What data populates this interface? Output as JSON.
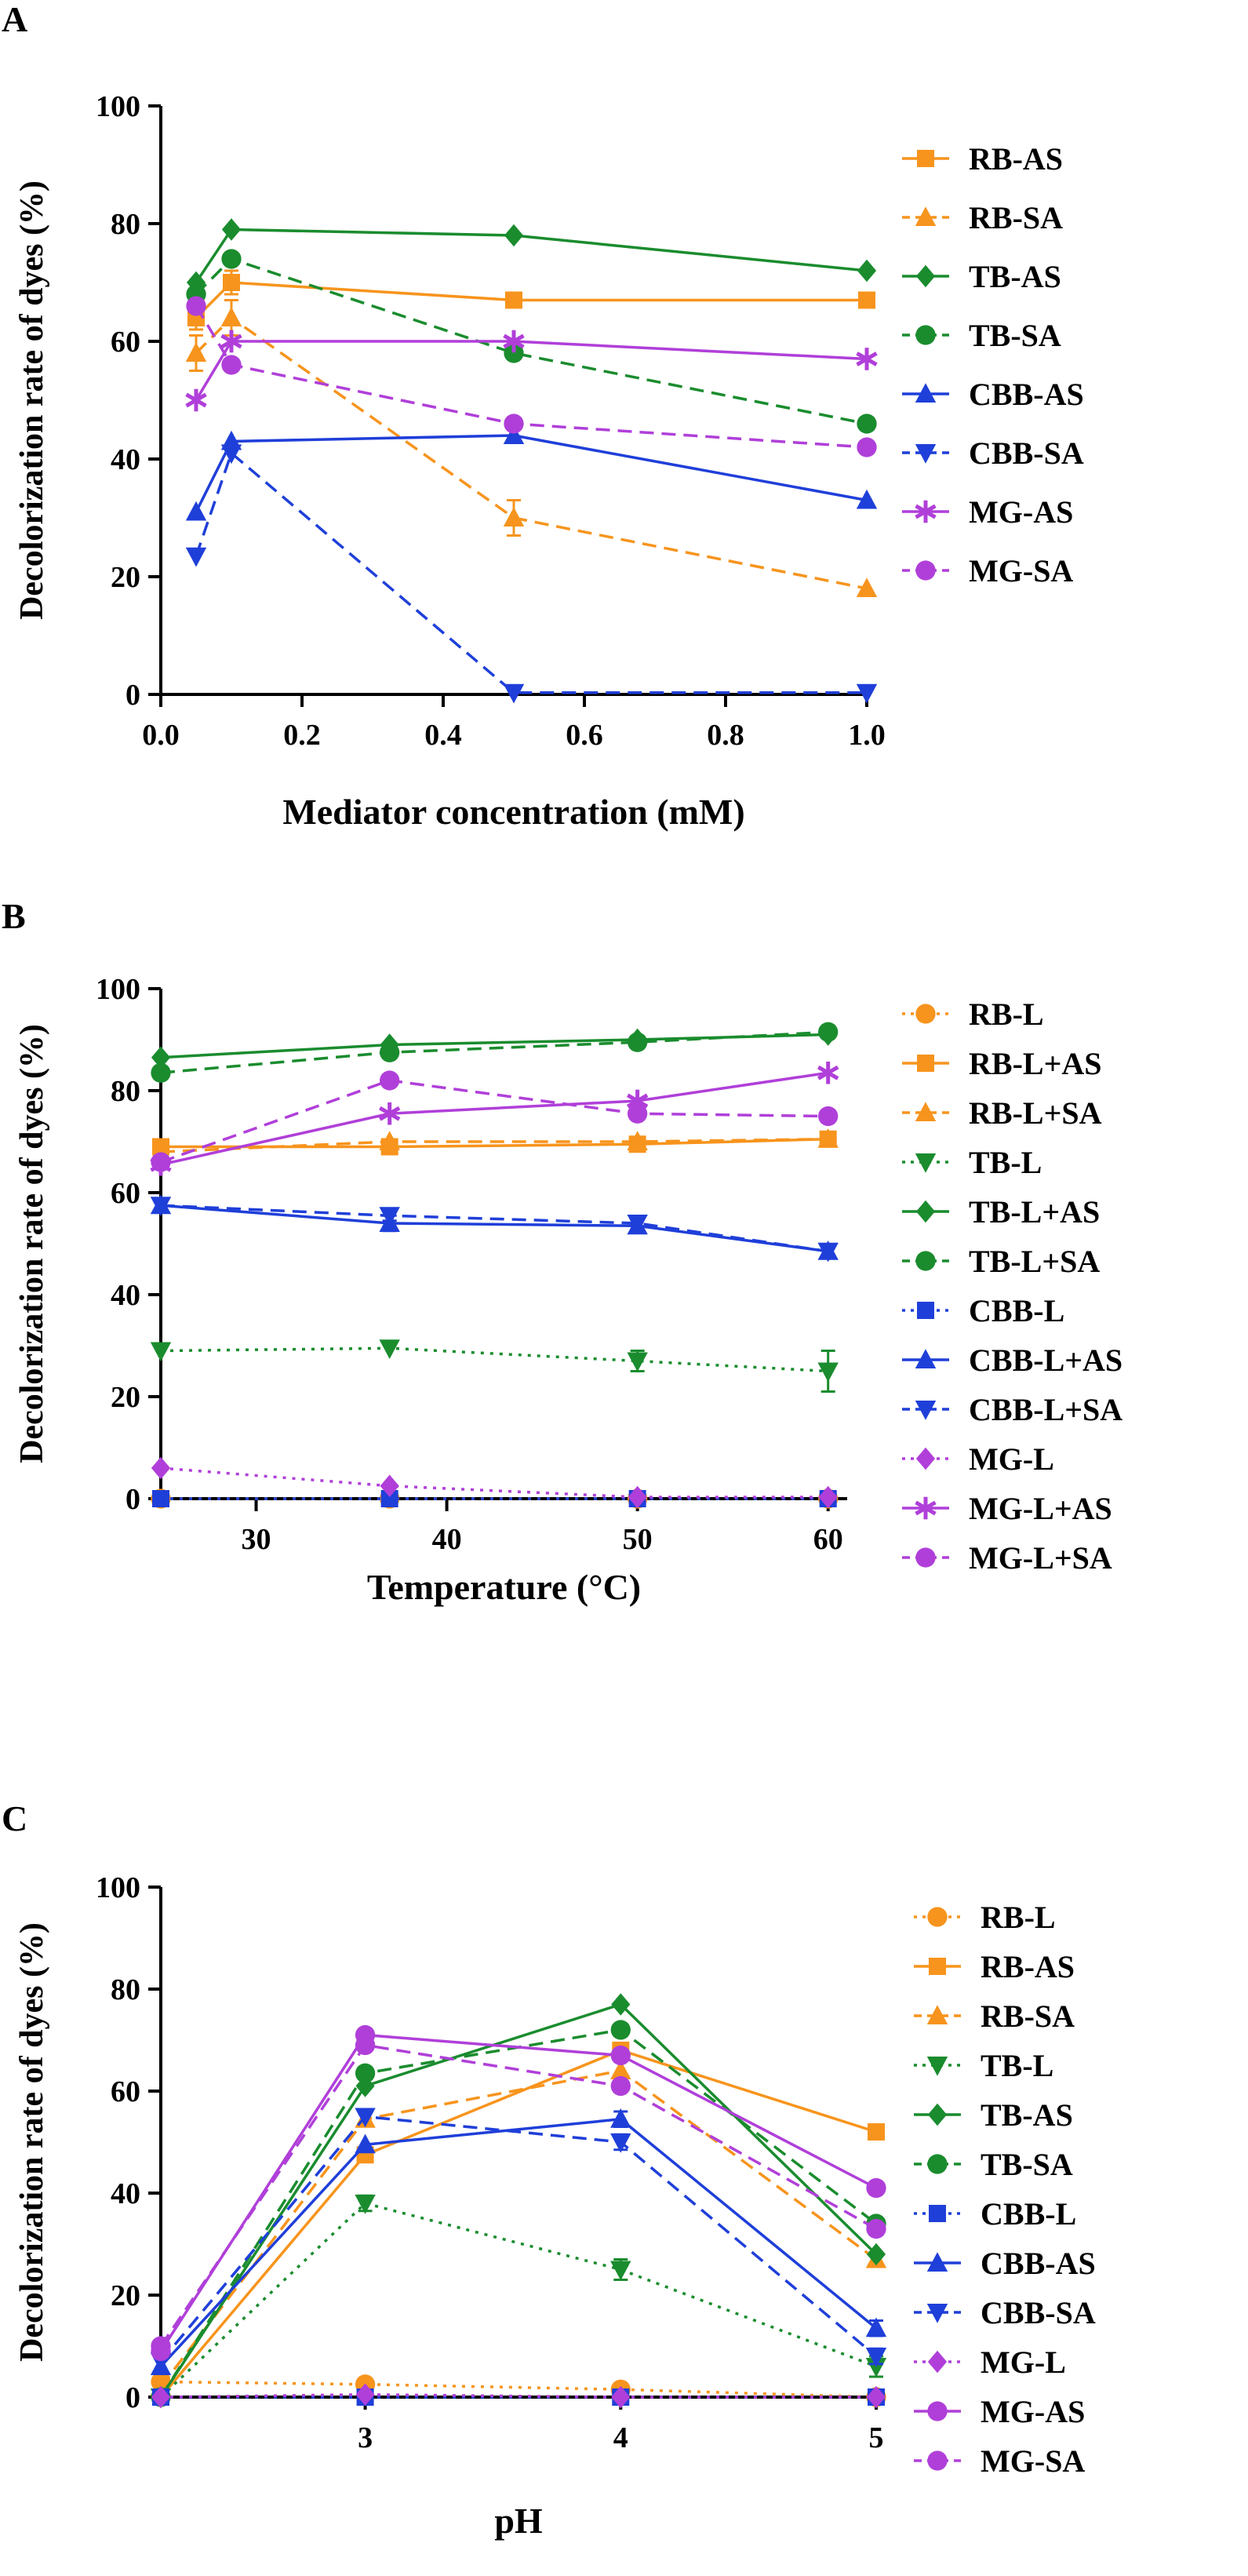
{
  "chart_data": [
    {
      "panel_label": "A",
      "type": "line",
      "xlabel": "Mediator concentration (mM)",
      "ylabel": "Decolorization rate of dyes (%)",
      "xlim": [
        0,
        1.0
      ],
      "ylim": [
        0,
        100
      ],
      "xticks": [
        0.0,
        0.2,
        0.4,
        0.6,
        0.8,
        1.0
      ],
      "xtick_labels": [
        "0.0",
        "0.2",
        "0.4",
        "0.6",
        "0.8",
        "1.0"
      ],
      "yticks": [
        0,
        20,
        40,
        60,
        80,
        100
      ],
      "ytick_labels": [
        "0",
        "20",
        "40",
        "60",
        "80",
        "100"
      ],
      "legend_position": "right",
      "x": [
        0.05,
        0.1,
        0.5,
        1.0
      ],
      "series": [
        {
          "name": "RB-AS",
          "color": "#f7941d",
          "dash": "solid",
          "marker": "square",
          "values": [
            64,
            70,
            67,
            67
          ],
          "errors": [
            2,
            2,
            0,
            0
          ]
        },
        {
          "name": "RB-SA",
          "color": "#f7941d",
          "dash": "dashed",
          "marker": "triangle-up",
          "values": [
            58,
            64,
            30,
            18
          ],
          "errors": [
            3,
            3,
            3,
            0
          ]
        },
        {
          "name": "TB-AS",
          "color": "#1a8c2e",
          "dash": "solid",
          "marker": "diamond",
          "values": [
            70,
            79,
            78,
            72
          ],
          "errors": [
            0,
            0,
            0,
            0
          ]
        },
        {
          "name": "TB-SA",
          "color": "#1a8c2e",
          "dash": "dashed",
          "marker": "circle",
          "values": [
            68,
            74,
            58,
            46
          ],
          "errors": [
            0,
            0,
            0,
            0
          ]
        },
        {
          "name": "CBB-AS",
          "color": "#1f3fd9",
          "dash": "solid",
          "marker": "triangle-up",
          "values": [
            31,
            43,
            44,
            33
          ],
          "errors": [
            0,
            0,
            0,
            0
          ]
        },
        {
          "name": "CBB-SA",
          "color": "#1f3fd9",
          "dash": "dashed",
          "marker": "triangle-down",
          "values": [
            23.5,
            41,
            0.3,
            0.3
          ],
          "errors": [
            0,
            0,
            0,
            0
          ]
        },
        {
          "name": "MG-AS",
          "color": "#b03fd9",
          "dash": "solid",
          "marker": "star",
          "values": [
            50,
            60,
            60,
            57
          ],
          "errors": [
            0,
            0,
            0,
            0
          ]
        },
        {
          "name": "MG-SA",
          "color": "#b03fd9",
          "dash": "dashed",
          "marker": "circle",
          "values": [
            66,
            56,
            46,
            42
          ],
          "errors": [
            0,
            0,
            0,
            0
          ]
        }
      ]
    },
    {
      "panel_label": "B",
      "type": "line",
      "xlabel": "Temperature (°C)",
      "ylabel": "Decolorization rate of dyes (%)",
      "xlim": [
        25,
        61
      ],
      "ylim": [
        0,
        100
      ],
      "xticks": [
        30,
        40,
        50,
        60
      ],
      "xtick_labels": [
        "30",
        "40",
        "50",
        "60"
      ],
      "yticks": [
        0,
        20,
        40,
        60,
        80,
        100
      ],
      "ytick_labels": [
        "0",
        "20",
        "40",
        "60",
        "80",
        "100"
      ],
      "legend_position": "right",
      "x": [
        25,
        37,
        50,
        60
      ],
      "series": [
        {
          "name": "RB-L",
          "color": "#f7941d",
          "dash": "dotted",
          "marker": "circle",
          "values": [
            0,
            0,
            0,
            0
          ],
          "errors": [
            0,
            0,
            0,
            0
          ]
        },
        {
          "name": "RB-L+AS",
          "color": "#f7941d",
          "dash": "solid",
          "marker": "square",
          "values": [
            69,
            69,
            69.5,
            70.5
          ],
          "errors": [
            0,
            0,
            0,
            0
          ]
        },
        {
          "name": "RB-L+SA",
          "color": "#f7941d",
          "dash": "dashed",
          "marker": "triangle-up",
          "values": [
            68,
            70,
            70,
            70.5
          ],
          "errors": [
            0,
            0,
            0,
            0
          ]
        },
        {
          "name": "TB-L",
          "color": "#1a8c2e",
          "dash": "dotted",
          "marker": "triangle-down",
          "values": [
            29,
            29.5,
            27,
            25
          ],
          "errors": [
            0,
            0,
            2,
            4
          ]
        },
        {
          "name": "TB-L+AS",
          "color": "#1a8c2e",
          "dash": "solid",
          "marker": "diamond",
          "values": [
            86.5,
            89,
            90,
            91
          ],
          "errors": [
            0,
            0,
            0,
            0
          ]
        },
        {
          "name": "TB-L+SA",
          "color": "#1a8c2e",
          "dash": "dashed",
          "marker": "circle",
          "values": [
            83.5,
            87.5,
            89.5,
            91.5
          ],
          "errors": [
            0,
            0,
            0,
            0
          ]
        },
        {
          "name": "CBB-L",
          "color": "#1f3fd9",
          "dash": "dotted",
          "marker": "square",
          "values": [
            0,
            0,
            0,
            0
          ],
          "errors": [
            0,
            0,
            0,
            0
          ]
        },
        {
          "name": "CBB-L+AS",
          "color": "#1f3fd9",
          "dash": "solid",
          "marker": "triangle-up",
          "values": [
            57.5,
            54,
            53.5,
            48.5
          ],
          "errors": [
            0,
            1.5,
            0,
            1
          ]
        },
        {
          "name": "CBB-L+SA",
          "color": "#1f3fd9",
          "dash": "dashed",
          "marker": "triangle-down",
          "values": [
            57.5,
            55.5,
            54,
            48.5
          ],
          "errors": [
            0,
            1,
            0,
            1
          ]
        },
        {
          "name": "MG-L",
          "color": "#b03fd9",
          "dash": "dotted",
          "marker": "diamond",
          "values": [
            6,
            2.5,
            0.3,
            0.3
          ],
          "errors": [
            0,
            0,
            0,
            0
          ]
        },
        {
          "name": "MG-L+AS",
          "color": "#b03fd9",
          "dash": "solid",
          "marker": "star",
          "values": [
            65.5,
            75.5,
            78,
            83.5
          ],
          "errors": [
            0,
            0,
            0,
            0
          ]
        },
        {
          "name": "MG-L+SA",
          "color": "#b03fd9",
          "dash": "dashed",
          "marker": "circle",
          "values": [
            66,
            82,
            75.5,
            75
          ],
          "errors": [
            0,
            0,
            0,
            0
          ]
        }
      ]
    },
    {
      "panel_label": "C",
      "type": "line",
      "xlabel": "pH",
      "ylabel": "Decolorization rate of dyes (%)",
      "xlim": [
        2.2,
        5
      ],
      "ylim": [
        0,
        100
      ],
      "xticks": [
        3,
        4,
        5
      ],
      "xtick_labels": [
        "3",
        "4",
        "5"
      ],
      "yticks": [
        0,
        20,
        40,
        60,
        80,
        100
      ],
      "ytick_labels": [
        "0",
        "20",
        "40",
        "60",
        "80",
        "100"
      ],
      "legend_position": "right",
      "x": [
        2.2,
        3,
        4,
        5
      ],
      "series": [
        {
          "name": "RB-L",
          "color": "#f7941d",
          "dash": "dotted",
          "marker": "circle",
          "values": [
            3,
            2.5,
            1.5,
            0
          ],
          "errors": [
            0,
            0,
            0,
            0
          ]
        },
        {
          "name": "RB-AS",
          "color": "#f7941d",
          "dash": "solid",
          "marker": "square",
          "values": [
            0,
            47.5,
            68,
            52
          ],
          "errors": [
            0,
            0,
            0,
            0
          ]
        },
        {
          "name": "RB-SA",
          "color": "#f7941d",
          "dash": "dashed",
          "marker": "triangle-up",
          "values": [
            2,
            54.5,
            64,
            27
          ],
          "errors": [
            0,
            0,
            0,
            0
          ]
        },
        {
          "name": "TB-L",
          "color": "#1a8c2e",
          "dash": "dotted",
          "marker": "triangle-down",
          "values": [
            0,
            38,
            25,
            6
          ],
          "errors": [
            0,
            1.5,
            2,
            2
          ]
        },
        {
          "name": "TB-AS",
          "color": "#1a8c2e",
          "dash": "solid",
          "marker": "diamond",
          "values": [
            0,
            61,
            77,
            28
          ],
          "errors": [
            0,
            0,
            0,
            0
          ]
        },
        {
          "name": "TB-SA",
          "color": "#1a8c2e",
          "dash": "dashed",
          "marker": "circle",
          "values": [
            0,
            63.5,
            72,
            34
          ],
          "errors": [
            0,
            0,
            0,
            0
          ]
        },
        {
          "name": "CBB-L",
          "color": "#1f3fd9",
          "dash": "dotted",
          "marker": "square",
          "values": [
            0,
            0,
            0,
            0
          ],
          "errors": [
            0,
            0,
            0,
            0
          ]
        },
        {
          "name": "CBB-AS",
          "color": "#1f3fd9",
          "dash": "solid",
          "marker": "triangle-up",
          "values": [
            6,
            49.5,
            54.5,
            13.5
          ],
          "errors": [
            0,
            0,
            1.5,
            1.5
          ]
        },
        {
          "name": "CBB-SA",
          "color": "#1f3fd9",
          "dash": "dashed",
          "marker": "triangle-down",
          "values": [
            7,
            55,
            50,
            8
          ],
          "errors": [
            0,
            0,
            1.5,
            1.5
          ]
        },
        {
          "name": "MG-L",
          "color": "#b03fd9",
          "dash": "dotted",
          "marker": "diamond",
          "values": [
            0,
            0.5,
            0,
            0
          ],
          "errors": [
            0,
            0,
            0,
            0
          ]
        },
        {
          "name": "MG-AS",
          "color": "#b03fd9",
          "dash": "solid",
          "marker": "circle",
          "values": [
            9,
            71,
            67,
            41
          ],
          "errors": [
            0,
            0,
            0,
            0
          ]
        },
        {
          "name": "MG-SA",
          "color": "#b03fd9",
          "dash": "dashed",
          "marker": "circle",
          "values": [
            10,
            69,
            61,
            33
          ],
          "errors": [
            0,
            0,
            1,
            0
          ]
        }
      ]
    }
  ]
}
